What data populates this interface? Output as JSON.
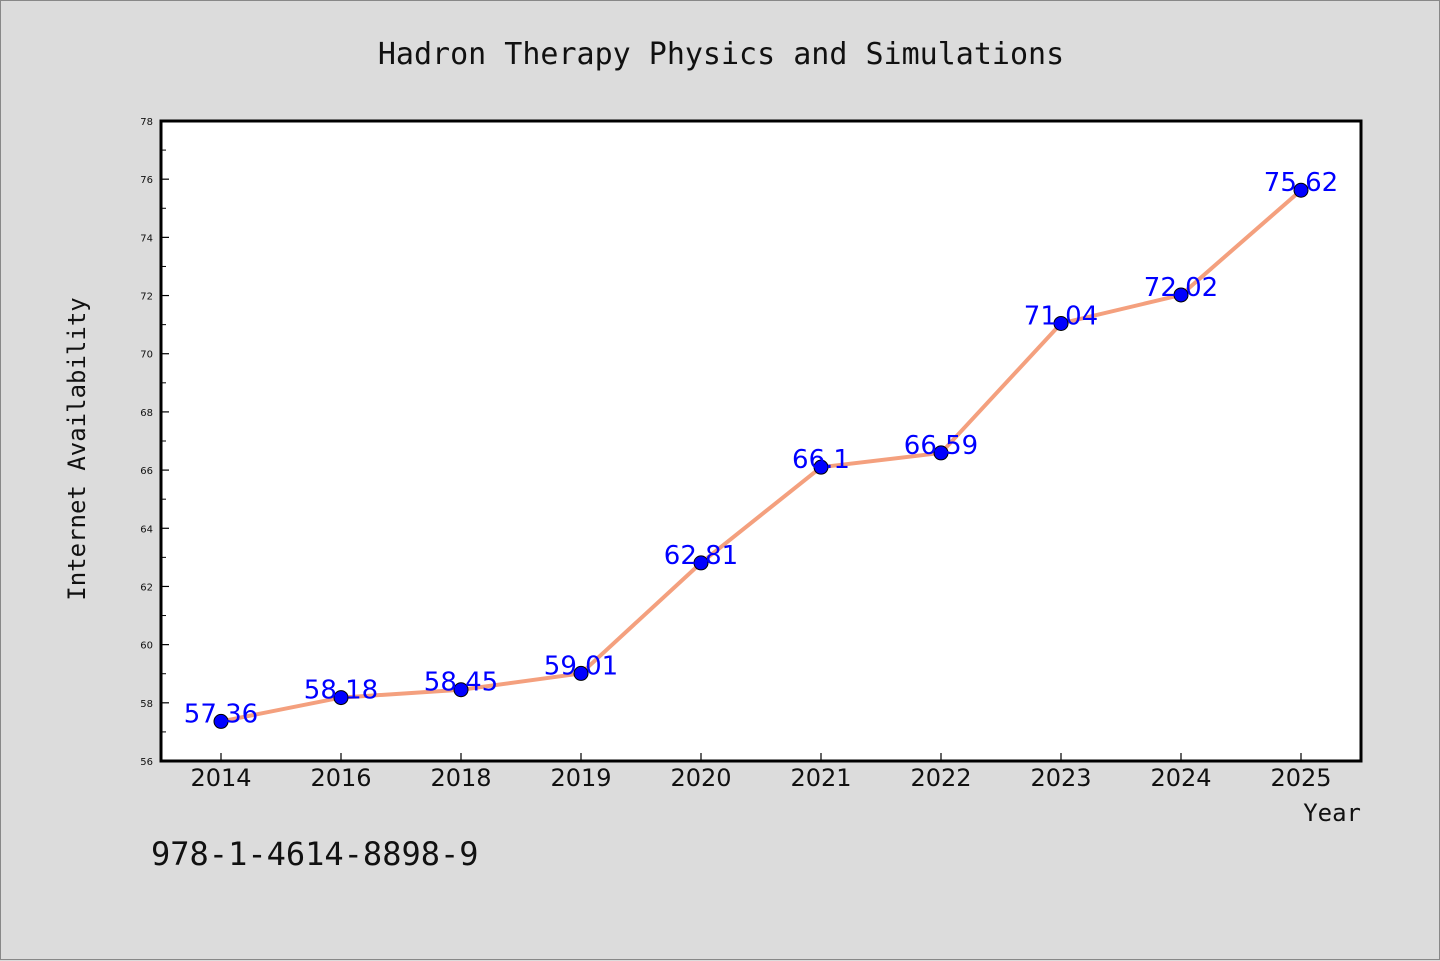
{
  "chart_data": {
    "type": "line",
    "title": "Hadron Therapy Physics and Simulations",
    "xlabel": "Year",
    "ylabel": "Internet Availability",
    "categories": [
      "2014",
      "2016",
      "2018",
      "2019",
      "2020",
      "2021",
      "2022",
      "2023",
      "2024",
      "2025"
    ],
    "values": [
      57.36,
      58.18,
      58.45,
      59.01,
      62.81,
      66.1,
      66.59,
      71.04,
      72.02,
      75.62
    ],
    "data_labels": [
      "57.36",
      "58.18",
      "58.45",
      "59.01",
      "62.81",
      "66.1",
      "66.59",
      "71.04",
      "72.02",
      "75.62"
    ],
    "ylim": [
      56,
      78
    ],
    "yticks": [
      "56",
      "58",
      "60",
      "62",
      "64",
      "66",
      "68",
      "70",
      "72",
      "74",
      "76",
      "78"
    ],
    "grid": false,
    "line_color": "#f4a07e",
    "marker_color": "#0000ff",
    "label_color": "#0000ff"
  },
  "footer": {
    "isbn": "978-1-4614-8898-9"
  }
}
